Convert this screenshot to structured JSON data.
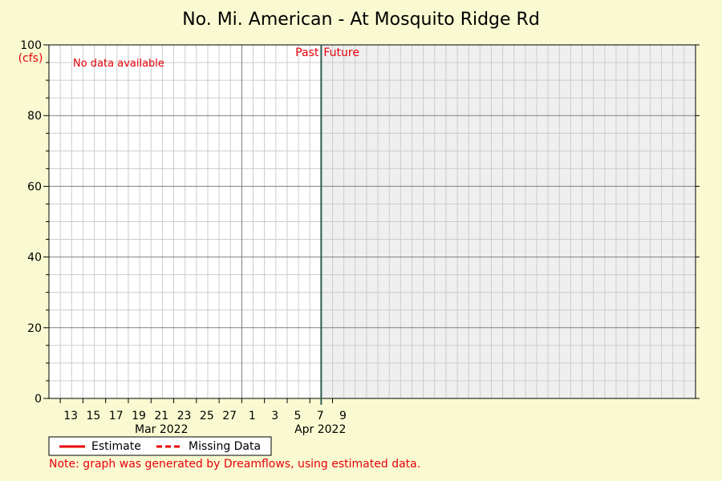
{
  "chart_data": {
    "type": "line",
    "title": "No. Mi. American - At Mosquito Ridge Rd",
    "ylabel": "(cfs)",
    "xlabel": "",
    "ylim": [
      0,
      100
    ],
    "yticks": [
      0,
      20,
      40,
      60,
      80,
      100
    ],
    "xlim": [
      "2022-02-12",
      "2022-04-10"
    ],
    "xticks": [
      {
        "date": "2022-02-13",
        "label": "13"
      },
      {
        "date": "2022-02-15",
        "label": "15"
      },
      {
        "date": "2022-02-17",
        "label": "17"
      },
      {
        "date": "2022-02-19",
        "label": "19"
      },
      {
        "date": "2022-02-21",
        "label": "21"
      },
      {
        "date": "2022-02-23",
        "label": "23"
      },
      {
        "date": "2022-02-25",
        "label": "25"
      },
      {
        "date": "2022-02-27",
        "label": "27"
      },
      {
        "date": "2022-03-01",
        "label": "1"
      },
      {
        "date": "2022-03-03",
        "label": "3"
      },
      {
        "date": "2022-03-05",
        "label": "5"
      },
      {
        "date": "2022-03-07",
        "label": "7"
      },
      {
        "date": "2022-03-09",
        "label": "9"
      }
    ],
    "month_labels": [
      {
        "date": "2022-02-21",
        "label": "Mar 2022"
      },
      {
        "date": "2022-03-07",
        "label": "Apr 2022"
      }
    ],
    "month_boundary": "2022-03-01",
    "now_marker": "2022-03-08",
    "past_label": "Past",
    "future_label": "Future",
    "no_data_text": "No data available",
    "grid": true,
    "series": [],
    "legend": {
      "placement": "bottom-left",
      "entries": [
        {
          "label": "Estimate",
          "style": "solid",
          "color": "#e8000b"
        },
        {
          "label": "Missing Data",
          "style": "dashed",
          "color": "#e8000b"
        }
      ]
    },
    "note": "Note: graph was generated by Dreamflows, using estimated data."
  },
  "colors": {
    "background": "#fafad2",
    "plot_background": "#ffffff",
    "future_shade": "#efefef",
    "accent_red": "#e8000b",
    "now_line": "#2f5f4f"
  }
}
